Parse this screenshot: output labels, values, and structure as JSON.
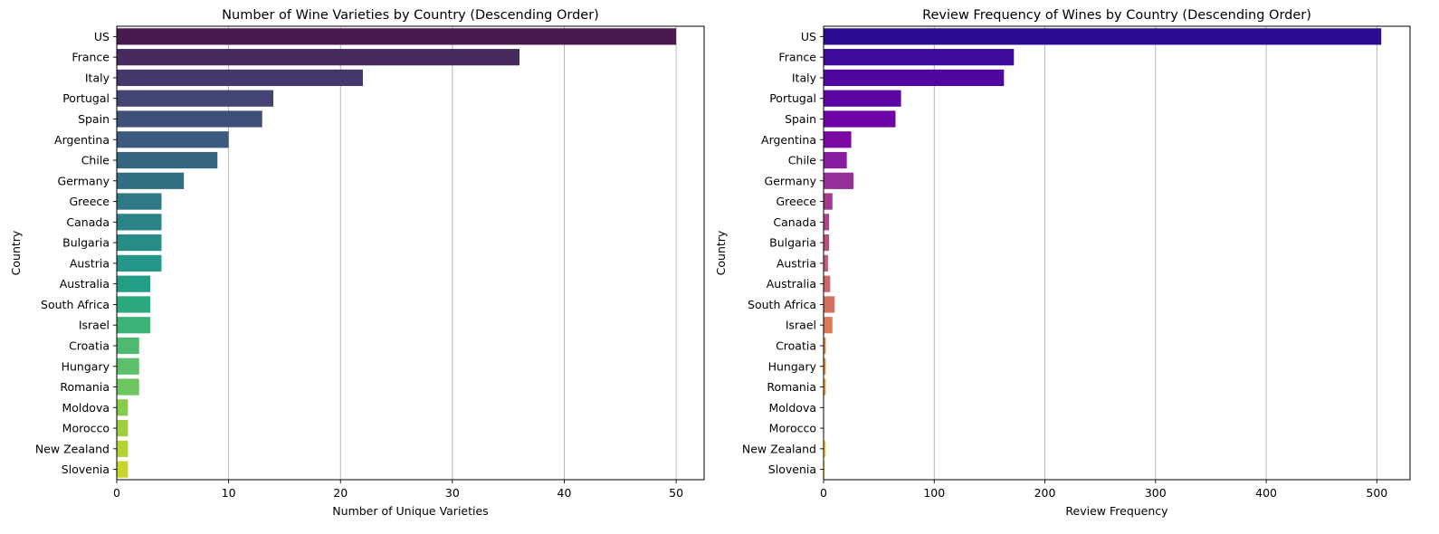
{
  "chart_data": [
    {
      "type": "bar",
      "orientation": "horizontal",
      "title": "Number of Wine Varieties by Country (Descending Order)",
      "xlabel": "Number of Unique Varieties",
      "ylabel": "Country",
      "categories": [
        "US",
        "France",
        "Italy",
        "Portugal",
        "Spain",
        "Argentina",
        "Chile",
        "Germany",
        "Greece",
        "Canada",
        "Bulgaria",
        "Austria",
        "Australia",
        "South Africa",
        "Israel",
        "Croatia",
        "Hungary",
        "Romania",
        "Moldova",
        "Morocco",
        "New Zealand",
        "Slovenia"
      ],
      "values": [
        50,
        36,
        22,
        14,
        13,
        10,
        9,
        6,
        4,
        4,
        4,
        4,
        3,
        3,
        3,
        2,
        2,
        2,
        1,
        1,
        1,
        1
      ],
      "xlim": [
        0,
        52.5
      ],
      "xticks": [
        0,
        10,
        20,
        30,
        40,
        50
      ],
      "grid": "x",
      "palette": "viridis",
      "colors": [
        "#481a4e",
        "#472a5f",
        "#45376a",
        "#434471",
        "#3e4f78",
        "#3a5b7e",
        "#356680",
        "#326f83",
        "#2e7985",
        "#2a8386",
        "#288b86",
        "#24968a",
        "#239e86",
        "#2aa980",
        "#3cb276",
        "#4fb96f",
        "#5dbf69",
        "#6ec65f",
        "#86cb4d",
        "#9ccf3f",
        "#b4d232",
        "#c8d42a"
      ]
    },
    {
      "type": "bar",
      "orientation": "horizontal",
      "title": "Review Frequency of Wines by Country (Descending Order)",
      "xlabel": "Review Frequency",
      "ylabel": "Country",
      "categories": [
        "US",
        "France",
        "Italy",
        "Portugal",
        "Spain",
        "Argentina",
        "Chile",
        "Germany",
        "Greece",
        "Canada",
        "Bulgaria",
        "Austria",
        "Australia",
        "South Africa",
        "Israel",
        "Croatia",
        "Hungary",
        "Romania",
        "Moldova",
        "Morocco",
        "New Zealand",
        "Slovenia"
      ],
      "values": [
        504,
        172,
        163,
        70,
        65,
        25,
        21,
        27,
        8,
        5,
        5,
        4,
        6,
        10,
        8,
        2,
        2,
        2,
        0,
        0,
        2,
        1
      ],
      "xlim": [
        0,
        530
      ],
      "xticks": [
        0,
        100,
        200,
        300,
        400,
        500
      ],
      "grid": "x",
      "palette": "plasma",
      "colors": [
        "#2c0b93",
        "#3e0a9b",
        "#4e08a0",
        "#5c05a5",
        "#6e04a8",
        "#7c09a4",
        "#891d9f",
        "#942e98",
        "#a13a8e",
        "#ad4586",
        "#b8507e",
        "#c25b74",
        "#cb6669",
        "#d4705e",
        "#dd7b54",
        "#e5884a",
        "#ec9540",
        "#f1a238",
        "#f5b033",
        "#f8bf30",
        "#f8ce31",
        "#f3dc33"
      ]
    }
  ]
}
